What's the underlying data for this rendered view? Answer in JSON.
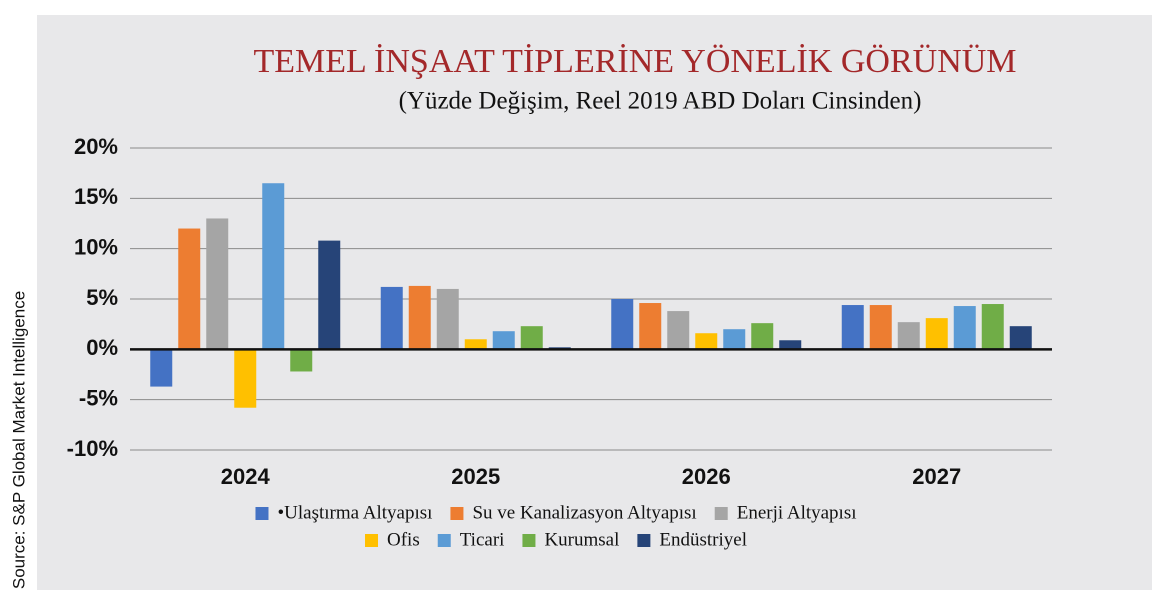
{
  "chart_data": {
    "type": "bar",
    "title": "TEMEL İNŞAAT TİPLERİNE YÖNELİK GÖRÜNÜM",
    "subtitle": "(Yüzde Değişim, Reel 2019 ABD Doları Cinsinden)",
    "source": "Source: S&P Global Market Intelligence",
    "categories": [
      "2024",
      "2025",
      "2026",
      "2027"
    ],
    "series": [
      {
        "name": "•Ulaştırma Altyapısı",
        "color": "#4472c4",
        "values": [
          -3.7,
          6.2,
          5.0,
          4.4
        ]
      },
      {
        "name": "Su ve Kanalizasyon Altyapısı",
        "color": "#ed7d31",
        "values": [
          12,
          6.3,
          4.6,
          4.4
        ]
      },
      {
        "name": "Enerji Altyapısı",
        "color": "#a5a5a5",
        "values": [
          13,
          6.0,
          3.8,
          2.7
        ]
      },
      {
        "name": "Ofis",
        "color": "#ffc000",
        "values": [
          -5.8,
          1.0,
          1.6,
          3.1
        ]
      },
      {
        "name": "Ticari",
        "color": "#5b9bd5",
        "values": [
          16.5,
          1.8,
          2.0,
          4.3
        ]
      },
      {
        "name": "Kurumsal",
        "color": "#70ad47",
        "values": [
          -2.2,
          2.3,
          2.6,
          4.5
        ]
      },
      {
        "name": "Endüstriyel",
        "color": "#264478",
        "values": [
          10.8,
          0.2,
          0.9,
          2.3
        ]
      }
    ],
    "ylim": [
      -10,
      20
    ],
    "yticks": [
      {
        "value": -10,
        "label": "-10%"
      },
      {
        "value": -5,
        "label": "-5%"
      },
      {
        "value": 0,
        "label": "0%"
      },
      {
        "value": 5,
        "label": "5%"
      },
      {
        "value": 10,
        "label": "10%"
      },
      {
        "value": 15,
        "label": "15%"
      },
      {
        "value": 20,
        "label": "20%"
      }
    ],
    "grid": true
  }
}
